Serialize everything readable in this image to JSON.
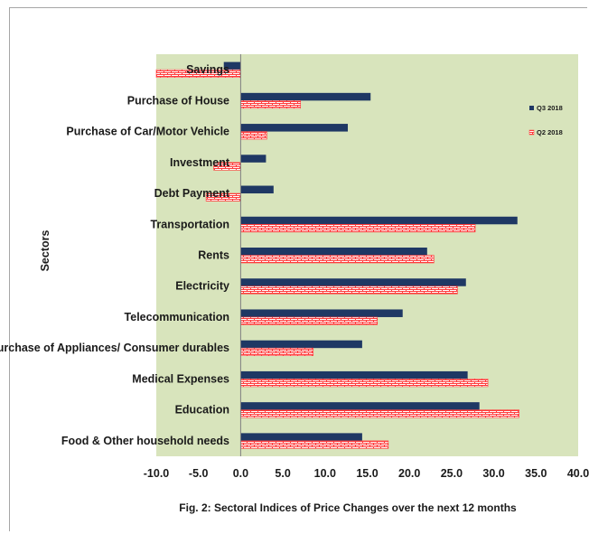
{
  "chart_data": {
    "type": "bar",
    "orientation": "horizontal",
    "title": "",
    "caption": "Fig. 2: Sectoral  Indices of Price Changes over the next 12 months",
    "ylabel": "Sectors",
    "xlabel": "",
    "xlim": [
      -10,
      40
    ],
    "xticks": [
      "-10.0",
      "-5.0",
      "0.0",
      "5.0",
      "10.0",
      "15.0",
      "20.0",
      "25.0",
      "30.0",
      "35.0",
      "40.0"
    ],
    "grid": false,
    "legend_position": "right",
    "background_color": "#d8e4bc",
    "categories": [
      "Savings",
      "Purchase of House",
      "Purchase of Car/Motor Vehicle",
      "Investment",
      "Debt Payment",
      "Transportation",
      "Rents",
      "Electricity",
      "Telecommunication",
      "Purchase of Appliances/ Consumer durables",
      "Medical Expenses",
      "Education",
      "Food & Other household needs"
    ],
    "series": [
      {
        "name": "Q3 2018",
        "color": "#1f3864",
        "pattern": "solid",
        "values": [
          -2.0,
          15.4,
          12.7,
          3.0,
          3.9,
          32.8,
          22.1,
          26.7,
          19.2,
          14.4,
          26.9,
          28.3,
          14.4
        ]
      },
      {
        "name": "Q2 2018",
        "color": "#ff3b3b",
        "pattern": "brick",
        "values": [
          -10.0,
          7.1,
          3.1,
          -3.2,
          -4.1,
          27.8,
          22.9,
          25.7,
          16.2,
          8.6,
          29.3,
          33.0,
          17.5
        ]
      }
    ]
  }
}
